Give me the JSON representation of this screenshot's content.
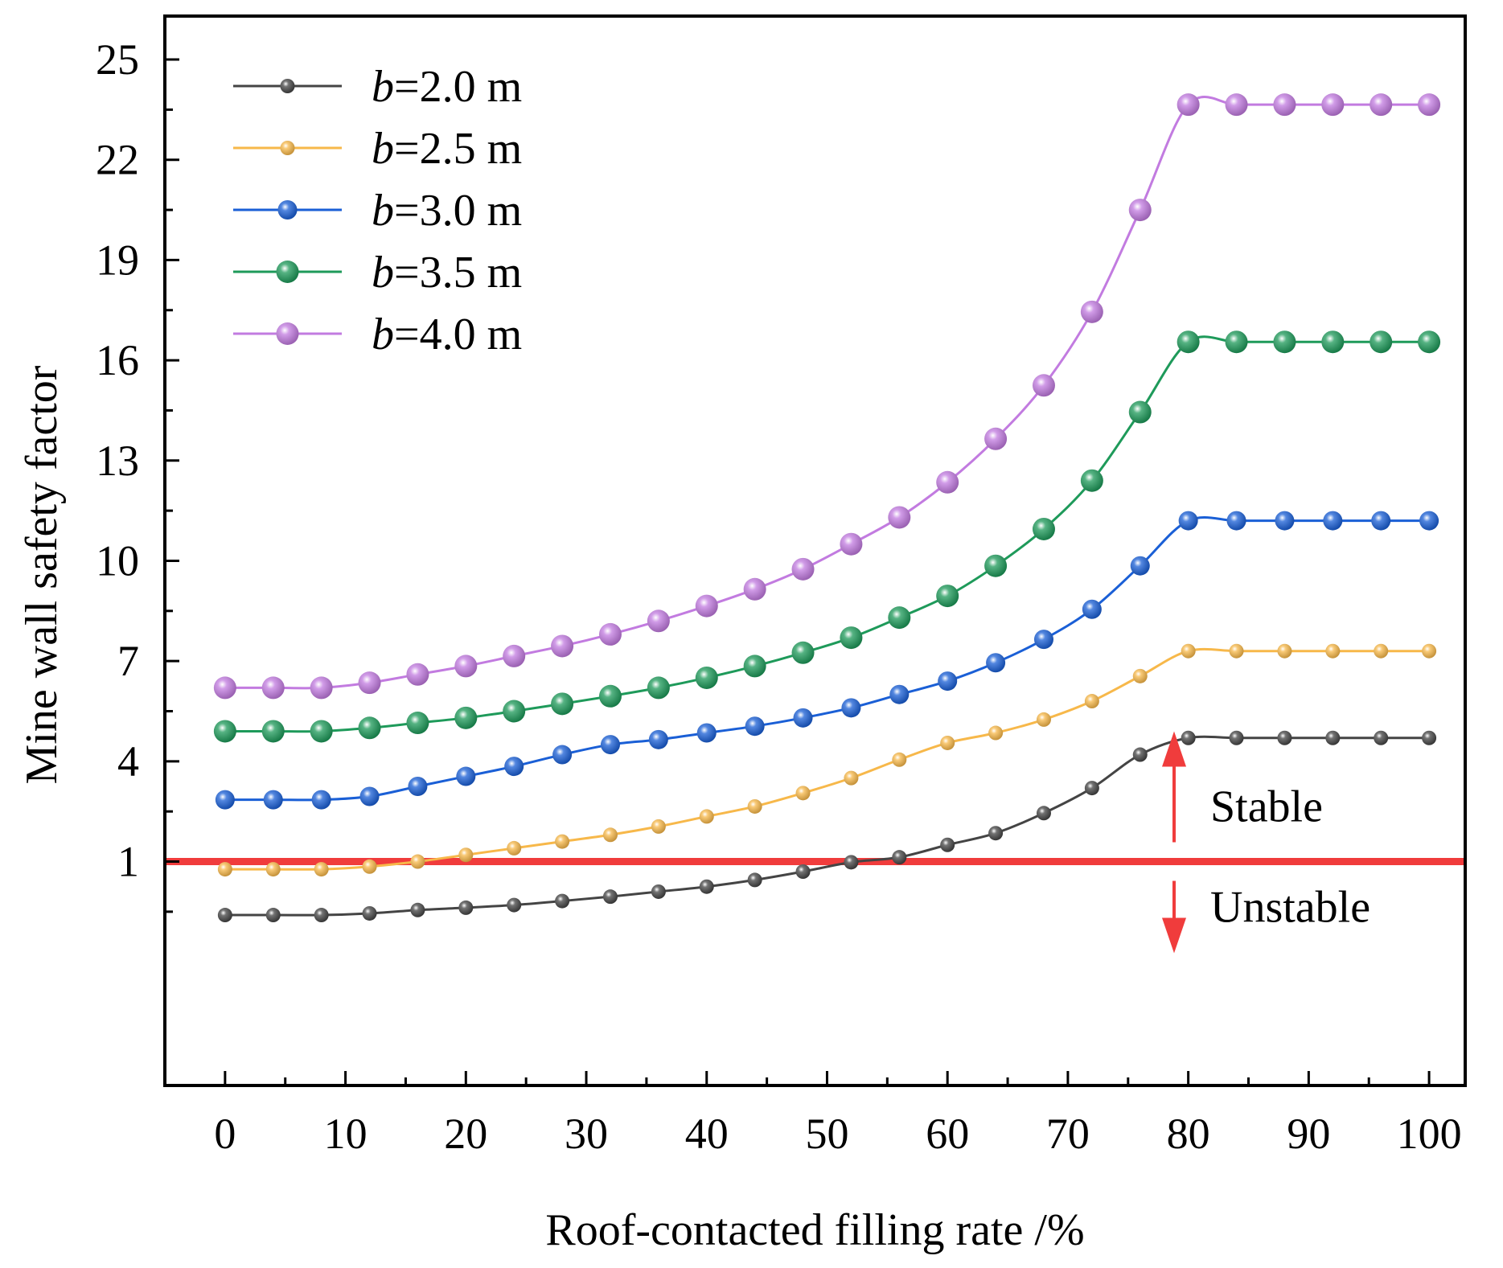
{
  "chart_data": {
    "type": "line",
    "xlabel": "Roof-contacted filling rate /%",
    "ylabel": "Mine wall safety factor",
    "xlim": [
      -5,
      103
    ],
    "ylim": [
      -5.7,
      26.3
    ],
    "x_ticks": [
      0,
      10,
      20,
      30,
      40,
      50,
      60,
      70,
      80,
      90,
      100
    ],
    "y_ticks": [
      1,
      4,
      7,
      10,
      13,
      16,
      19,
      22,
      25
    ],
    "x": [
      0,
      4,
      8,
      12,
      16,
      20,
      24,
      28,
      32,
      36,
      40,
      44,
      48,
      52,
      56,
      60,
      64,
      68,
      72,
      76,
      80,
      84,
      88,
      92,
      96,
      100
    ],
    "series": [
      {
        "name_prefix": "b",
        "name_suffix": "=2.0 m",
        "color": "#444444",
        "marker": "small",
        "values": [
          -0.6,
          -0.6,
          -0.6,
          -0.55,
          -0.45,
          -0.38,
          -0.3,
          -0.18,
          -0.05,
          0.1,
          0.25,
          0.45,
          0.7,
          0.98,
          1.13,
          1.5,
          1.85,
          2.45,
          3.2,
          4.2,
          4.7,
          4.7,
          4.7,
          4.7,
          4.7,
          4.7
        ]
      },
      {
        "name_prefix": "b",
        "name_suffix": "=2.5 m",
        "color": "#F7B84A",
        "marker": "small",
        "values": [
          0.77,
          0.77,
          0.77,
          0.85,
          1.0,
          1.2,
          1.4,
          1.6,
          1.8,
          2.05,
          2.35,
          2.65,
          3.05,
          3.5,
          4.05,
          4.55,
          4.85,
          5.25,
          5.8,
          6.55,
          7.3,
          7.3,
          7.3,
          7.3,
          7.3,
          7.3
        ]
      },
      {
        "name_prefix": "b",
        "name_suffix": "=3.0 m",
        "color": "#1A5FD6",
        "marker": "medium",
        "values": [
          2.85,
          2.85,
          2.85,
          2.95,
          3.25,
          3.55,
          3.85,
          4.2,
          4.5,
          4.65,
          4.85,
          5.05,
          5.3,
          5.6,
          6.0,
          6.4,
          6.95,
          7.65,
          8.55,
          9.85,
          11.2,
          11.2,
          11.2,
          11.2,
          11.2,
          11.2
        ]
      },
      {
        "name_prefix": "b",
        "name_suffix": "=3.5 m",
        "color": "#1E9A5A",
        "marker": "large",
        "values": [
          4.9,
          4.9,
          4.9,
          5.0,
          5.15,
          5.3,
          5.5,
          5.72,
          5.95,
          6.2,
          6.5,
          6.85,
          7.25,
          7.7,
          8.3,
          8.95,
          9.85,
          10.95,
          12.4,
          14.45,
          16.55,
          16.55,
          16.55,
          16.55,
          16.55,
          16.55
        ]
      },
      {
        "name_prefix": "b",
        "name_suffix": "=4.0 m",
        "color": "#C27BE0",
        "marker": "large",
        "values": [
          6.2,
          6.2,
          6.2,
          6.35,
          6.6,
          6.85,
          7.15,
          7.45,
          7.8,
          8.2,
          8.65,
          9.15,
          9.75,
          10.5,
          11.3,
          12.35,
          13.65,
          15.25,
          17.45,
          20.5,
          23.65,
          23.65,
          23.65,
          23.65,
          23.65,
          23.65
        ]
      }
    ],
    "threshold": {
      "value": 1,
      "color": "#F03C3C"
    },
    "annotations": {
      "stable": "Stable",
      "unstable": "Unstable"
    },
    "legend_position": "top-left"
  }
}
